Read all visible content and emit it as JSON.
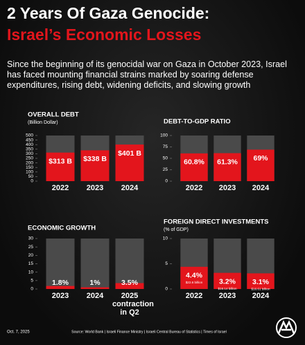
{
  "title": "2 Years Of Gaza Genocide:",
  "subtitle": "Israel’s Economic Losses",
  "description": "Since the beginning of its genocidal war on Gaza in October 2023, Israel has faced mounting financial strains marked by soaring defense expenditures, rising debt, widening deficits, and slowing growth",
  "date": "Oct. 7, 2025",
  "source": "Source: World Bank | Israeli Finance Ministry | Israeli Central Bureau of Statistics | Times of Israel",
  "chart_data": [
    {
      "type": "bar",
      "title": "OVERALL DEBT",
      "subtitle": "(Billion Dollar)",
      "color": "#e3151c",
      "categories": [
        "2022",
        "2023",
        "2024"
      ],
      "values": [
        313,
        338,
        401
      ],
      "value_labels": [
        "$313 B",
        "$338 B",
        "$401 B"
      ],
      "ylim": [
        0,
        500
      ],
      "yticks": [
        0,
        50,
        100,
        150,
        200,
        250,
        300,
        350,
        400,
        450,
        500
      ]
    },
    {
      "type": "bar",
      "title": "DEBT-TO-GDP RATIO",
      "color": "#e3151c",
      "categories": [
        "2022",
        "2023",
        "2024"
      ],
      "values": [
        60.8,
        61.3,
        69
      ],
      "value_labels": [
        "60.8%",
        "61.3%",
        "69%"
      ],
      "ylim": [
        0,
        100
      ],
      "yticks": [
        0,
        25,
        50,
        75,
        100
      ]
    },
    {
      "type": "bar",
      "title": "ECONOMIC GROWTH",
      "color": "#e3151c",
      "categories": [
        "2023",
        "2024",
        "2025 contraction in Q2"
      ],
      "values": [
        1.8,
        1,
        3.5
      ],
      "value_labels": [
        "1.8%",
        "1%",
        "3.5%"
      ],
      "ylim": [
        0,
        30
      ],
      "yticks": [
        0,
        5,
        10,
        15,
        20,
        25,
        30
      ]
    },
    {
      "type": "bar",
      "title": "FOREIGN DIRECT INVESTMENTS",
      "subtitle": "(% of GDP)",
      "color": "#e3151c",
      "categories": [
        "2022",
        "2023",
        "2024"
      ],
      "values": [
        4.4,
        3.2,
        3.1
      ],
      "value_labels": [
        "4.4%",
        "3.2%",
        "3.1%"
      ],
      "notes": [
        "$22.6 billion",
        "$16.14 billion",
        "$16.61 billion"
      ],
      "ylim": [
        0,
        10
      ],
      "yticks": [
        0,
        5,
        10
      ]
    }
  ]
}
